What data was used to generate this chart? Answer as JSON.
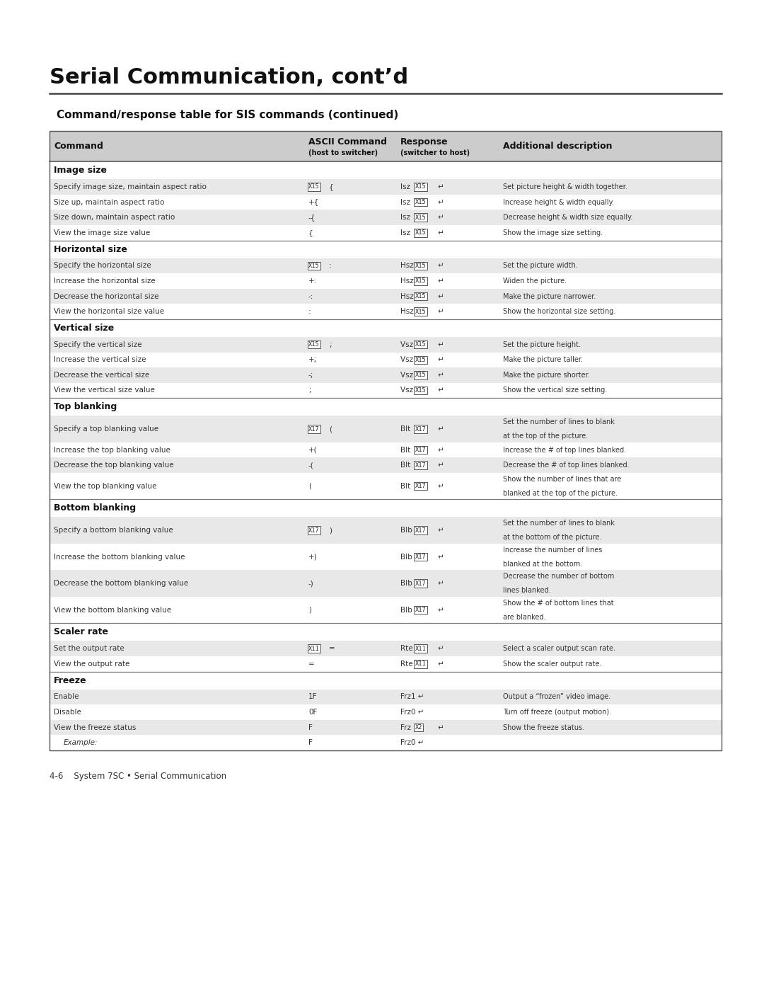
{
  "page_title": "Serial Communication, cont’d",
  "section_subtitle": "Command/response table for SIS commands (continued)",
  "background_color": "#ffffff",
  "header_bg": "#cccccc",
  "row_bg_alt": "#e8e8e8",
  "row_bg_white": "#ffffff",
  "sections": [
    {
      "name": "Image size",
      "rows": [
        {
          "cmd": "Specify image size, maintain aspect ratio",
          "ascii_box": "X15",
          "ascii_rest": "{",
          "resp_pre": "Isz",
          "resp_box": "X15",
          "resp_suf": "↵",
          "desc": "Set picture height & width together.",
          "shaded": true
        },
        {
          "cmd": "Size up, maintain aspect ratio",
          "ascii_box": "",
          "ascii_rest": "+{",
          "resp_pre": "Isz",
          "resp_box": "X15",
          "resp_suf": "↵",
          "desc": "Increase height & width equally.",
          "shaded": false
        },
        {
          "cmd": "Size down, maintain aspect ratio",
          "ascii_box": "",
          "ascii_rest": "-{",
          "resp_pre": "Isz",
          "resp_box": "X15",
          "resp_suf": "↵",
          "desc": "Decrease height & width size equally.",
          "shaded": true
        },
        {
          "cmd": "View the image size value",
          "ascii_box": "",
          "ascii_rest": "{",
          "resp_pre": "Isz",
          "resp_box": "X15",
          "resp_suf": "↵",
          "desc": "Show the image size setting.",
          "shaded": false
        }
      ]
    },
    {
      "name": "Horizontal size",
      "rows": [
        {
          "cmd": "Specify the horizontal size",
          "ascii_box": "X15",
          "ascii_rest": ":",
          "resp_pre": "Hsz",
          "resp_box": "X15",
          "resp_suf": "↵",
          "desc": "Set the picture width.",
          "shaded": true
        },
        {
          "cmd": "Increase the horizontal size",
          "ascii_box": "",
          "ascii_rest": "+:",
          "resp_pre": "Hsz",
          "resp_box": "X15",
          "resp_suf": "↵",
          "desc": "Widen the picture.",
          "shaded": false
        },
        {
          "cmd": "Decrease the horizontal size",
          "ascii_box": "",
          "ascii_rest": "-:",
          "resp_pre": "Hsz",
          "resp_box": "X15",
          "resp_suf": "↵",
          "desc": "Make the picture narrower.",
          "shaded": true
        },
        {
          "cmd": "View the horizontal size value",
          "ascii_box": "",
          "ascii_rest": ":",
          "resp_pre": "Hsz",
          "resp_box": "X15",
          "resp_suf": "↵",
          "desc": "Show the horizontal size setting.",
          "shaded": false
        }
      ]
    },
    {
      "name": "Vertical size",
      "rows": [
        {
          "cmd": "Specify the vertical size",
          "ascii_box": "X15",
          "ascii_rest": ";",
          "resp_pre": "Vsz",
          "resp_box": "X15",
          "resp_suf": "↵",
          "desc": "Set the picture height.",
          "shaded": true
        },
        {
          "cmd": "Increase the vertical size",
          "ascii_box": "",
          "ascii_rest": "+;",
          "resp_pre": "Vsz",
          "resp_box": "X15",
          "resp_suf": "↵",
          "desc": "Make the picture taller.",
          "shaded": false
        },
        {
          "cmd": "Decrease the vertical size",
          "ascii_box": "",
          "ascii_rest": "-;",
          "resp_pre": "Vsz",
          "resp_box": "X15",
          "resp_suf": "↵",
          "desc": "Make the picture shorter.",
          "shaded": true
        },
        {
          "cmd": "View the vertical size value",
          "ascii_box": "",
          "ascii_rest": ";",
          "resp_pre": "Vsz",
          "resp_box": "X15",
          "resp_suf": "↵",
          "desc": "Show the vertical size setting.",
          "shaded": false
        }
      ]
    },
    {
      "name": "Top blanking",
      "rows": [
        {
          "cmd": "Specify a top blanking value",
          "ascii_box": "X17",
          "ascii_rest": "(",
          "resp_pre": "Blt",
          "resp_box": "X17",
          "resp_suf": "↵",
          "desc": "Set the number of lines to blank\nat the top of the picture.",
          "shaded": true
        },
        {
          "cmd": "Increase the top blanking value",
          "ascii_box": "",
          "ascii_rest": "+(",
          "resp_pre": "Blt",
          "resp_box": "X17",
          "resp_suf": "↵",
          "desc": "Increase the # of top lines blanked.",
          "shaded": false
        },
        {
          "cmd": "Decrease the top blanking value",
          "ascii_box": "",
          "ascii_rest": "-(",
          "resp_pre": "Blt",
          "resp_box": "X17",
          "resp_suf": "↵",
          "desc": "Decrease the # of top lines blanked.",
          "shaded": true
        },
        {
          "cmd": "View the top blanking value",
          "ascii_box": "",
          "ascii_rest": "(",
          "resp_pre": "Blt",
          "resp_box": "X17",
          "resp_suf": "↵",
          "desc": "Show the number of lines that are\nblanked at the top of the picture.",
          "shaded": false
        }
      ]
    },
    {
      "name": "Bottom blanking",
      "rows": [
        {
          "cmd": "Specify a bottom blanking value",
          "ascii_box": "X17",
          "ascii_rest": ")",
          "resp_pre": "Blb",
          "resp_box": "X17",
          "resp_suf": "↵",
          "desc": "Set the number of lines to blank\nat the bottom of the picture.",
          "shaded": true
        },
        {
          "cmd": "Increase the bottom blanking value",
          "ascii_box": "",
          "ascii_rest": "+)",
          "resp_pre": "Blb",
          "resp_box": "X17",
          "resp_suf": "↵",
          "desc": "Increase the number of lines\nblanked at the bottom.",
          "shaded": false
        },
        {
          "cmd": "Decrease the bottom blanking value",
          "ascii_box": "",
          "ascii_rest": "-)",
          "resp_pre": "Blb",
          "resp_box": "X17",
          "resp_suf": "↵",
          "desc": "Decrease the number of bottom\nlines blanked.",
          "shaded": true
        },
        {
          "cmd": "View the bottom blanking value",
          "ascii_box": "",
          "ascii_rest": ")",
          "resp_pre": "Blb",
          "resp_box": "X17",
          "resp_suf": "↵",
          "desc": "Show the # of bottom lines that\nare blanked.",
          "shaded": false
        }
      ]
    },
    {
      "name": "Scaler rate",
      "rows": [
        {
          "cmd": "Set the output rate",
          "ascii_box": "X11",
          "ascii_rest": "=",
          "resp_pre": "Rte",
          "resp_box": "X11",
          "resp_suf": "↵",
          "desc": "Select a scaler output scan rate.",
          "shaded": true
        },
        {
          "cmd": "View the output rate",
          "ascii_box": "",
          "ascii_rest": "=",
          "resp_pre": "Rte",
          "resp_box": "X11",
          "resp_suf": "↵",
          "desc": "Show the scaler output rate.",
          "shaded": false
        }
      ]
    },
    {
      "name": "Freeze",
      "rows": [
        {
          "cmd": "Enable",
          "ascii_box": "",
          "ascii_rest": "1F",
          "resp_pre": "Frz1",
          "resp_box": "",
          "resp_suf": "↵",
          "desc": "Output a “frozen” video image.",
          "shaded": true
        },
        {
          "cmd": "Disable",
          "ascii_box": "",
          "ascii_rest": "0F",
          "resp_pre": "Frz0",
          "resp_box": "",
          "resp_suf": "↵",
          "desc": "Turn off freeze (output motion).",
          "shaded": false
        },
        {
          "cmd": "View the freeze status",
          "ascii_box": "",
          "ascii_rest": "F",
          "resp_pre": "Frz",
          "resp_box": "X2",
          "resp_suf": "↵",
          "desc": "Show the freeze status.",
          "shaded": true
        },
        {
          "cmd": "Example:",
          "ascii_box": "",
          "ascii_rest": "F",
          "resp_pre": "Frz0",
          "resp_box": "",
          "resp_suf": "↵",
          "desc": "",
          "shaded": false,
          "italic_cmd": true
        }
      ]
    }
  ],
  "footer_text": "4-6    System 7SC • Serial Communication"
}
